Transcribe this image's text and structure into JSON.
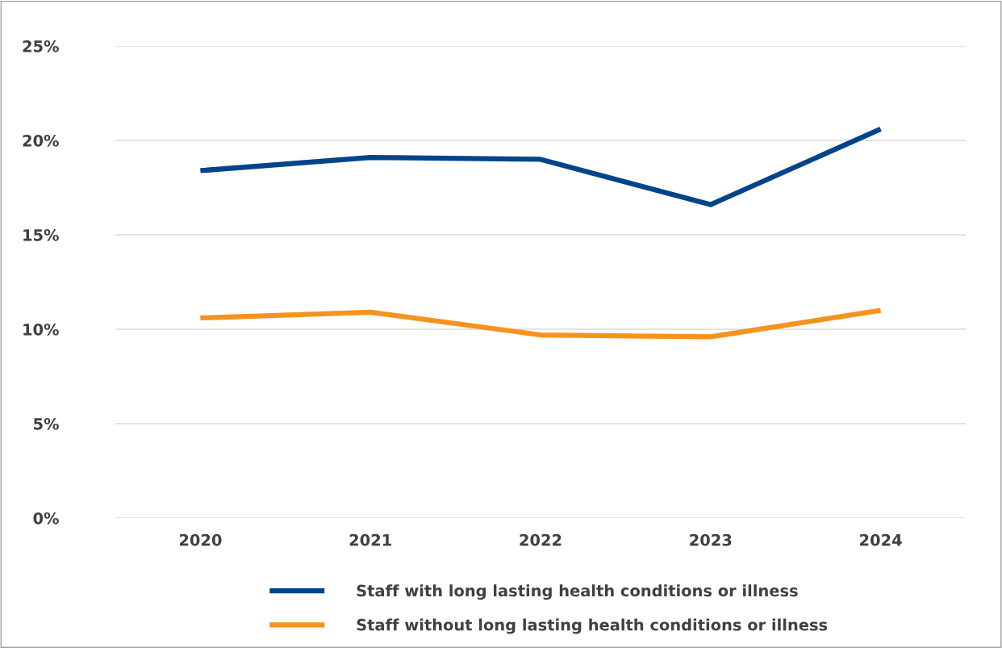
{
  "chart_data": {
    "type": "line",
    "categories": [
      "2020",
      "2021",
      "2022",
      "2023",
      "2024"
    ],
    "series": [
      {
        "name": "Staff with long lasting health conditions or illness",
        "color": "#004489",
        "values": [
          18.4,
          19.1,
          19.0,
          16.6,
          20.6
        ]
      },
      {
        "name": "Staff without long lasting health conditions or illness",
        "color": "#f6931d",
        "values": [
          10.6,
          10.9,
          9.7,
          9.6,
          11.0
        ]
      }
    ],
    "ylim": [
      0,
      25
    ],
    "yticks": [
      {
        "value": 0,
        "label": "0%"
      },
      {
        "value": 5,
        "label": "5%"
      },
      {
        "value": 10,
        "label": "10%"
      },
      {
        "value": 15,
        "label": "15%"
      },
      {
        "value": 20,
        "label": "20%"
      },
      {
        "value": 25,
        "label": "25%"
      }
    ],
    "grid": "y",
    "legend": "bottom",
    "marker": "none",
    "line_style": "solid"
  }
}
